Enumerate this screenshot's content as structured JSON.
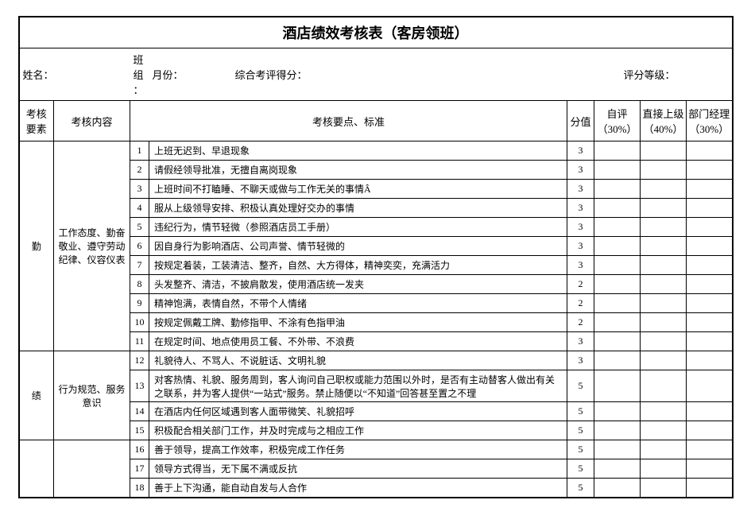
{
  "title": "酒店绩效考核表（客房领班）",
  "info_labels": {
    "name": "姓名：",
    "team": "班组：",
    "month": "月份：",
    "total": "综合考评得分：",
    "level": "评分等级："
  },
  "headers": {
    "element": "考核要素",
    "content": "考核内容",
    "criteria": "考核要点、标准",
    "score": "分值",
    "self": "自评（30%）",
    "supervisor": "直接上级（40%）",
    "manager": "部门经理（30%）"
  },
  "sections": [
    {
      "element": "勤",
      "groups": [
        {
          "content": "工作态度、勤奋敬业、遵守劳动纪律、仪容仪表",
          "rows": [
            {
              "no": "1",
              "criteria": "上班无迟到、早退现象",
              "score": "3"
            },
            {
              "no": "2",
              "criteria": "请假经领导批准，无擅自离岗现象",
              "score": "3"
            },
            {
              "no": "3",
              "criteria": "上班时间不打瞌睡、不聊天或做与工作无关的事情Â",
              "score": "3"
            },
            {
              "no": "4",
              "criteria": "服从上级领导安排、积极认真处理好交办的事情",
              "score": "3"
            },
            {
              "no": "5",
              "criteria": "违纪行为，情节轻微（参照酒店员工手册）",
              "score": "3"
            },
            {
              "no": "6",
              "criteria": "因自身行为影响酒店、公司声誉、情节轻微的",
              "score": "3"
            },
            {
              "no": "7",
              "criteria": "按规定着装，工装清洁、整齐，自然、大方得体，精神奕奕，充满活力",
              "score": "3"
            },
            {
              "no": "8",
              "criteria": "头发整齐、清洁，不披肩散发，使用酒店统一发夹",
              "score": "2"
            },
            {
              "no": "9",
              "criteria": "精神饱满，表情自然，不带个人情绪",
              "score": "2"
            },
            {
              "no": "10",
              "criteria": "按规定佩戴工牌、勤修指甲、不涂有色指甲油",
              "score": "2"
            },
            {
              "no": "11",
              "criteria": "  在规定时间、地点使用员工餐、不外带、不浪费",
              "score": "3"
            }
          ]
        }
      ]
    },
    {
      "element": "绩",
      "groups": [
        {
          "content": "行为规范、服务意识",
          "rows": [
            {
              "no": "12",
              "criteria": "礼貌待人、不骂人、不说脏话、文明礼貌",
              "score": "3"
            },
            {
              "no": "13",
              "criteria": "对客热情、礼貌、服务周到，客人询问自己职权或能力范围以外时，是否有主动替客人做出有关之联系，并为客人提供“一站式”服务。禁止随便以“不知道”回答甚至置之不理",
              "score": "5",
              "tall": true
            },
            {
              "no": "14",
              "criteria": "在酒店内任何区域遇到客人面带微笑、礼貌招呼",
              "score": "5"
            },
            {
              "no": "15",
              "criteria": "积极配合相关部门工作，并及时完成与之相应工作",
              "score": "5"
            }
          ]
        }
      ]
    },
    {
      "element": " ",
      "groups": [
        {
          "content": " ",
          "rows": [
            {
              "no": "16",
              "criteria": "善于领导，提高工作效率，积极完成工作任务",
              "score": "5"
            },
            {
              "no": "17",
              "criteria": "领导方式得当，无下属不满或反抗",
              "score": "5"
            },
            {
              "no": "18",
              "criteria": "善于上下沟通，能自动自发与人合作",
              "score": "5"
            }
          ]
        }
      ]
    }
  ],
  "style": {
    "border_color": "#000000",
    "bg": "#ffffff",
    "title_fontsize": 18,
    "body_fontsize": 12,
    "header_fontsize": 13
  }
}
